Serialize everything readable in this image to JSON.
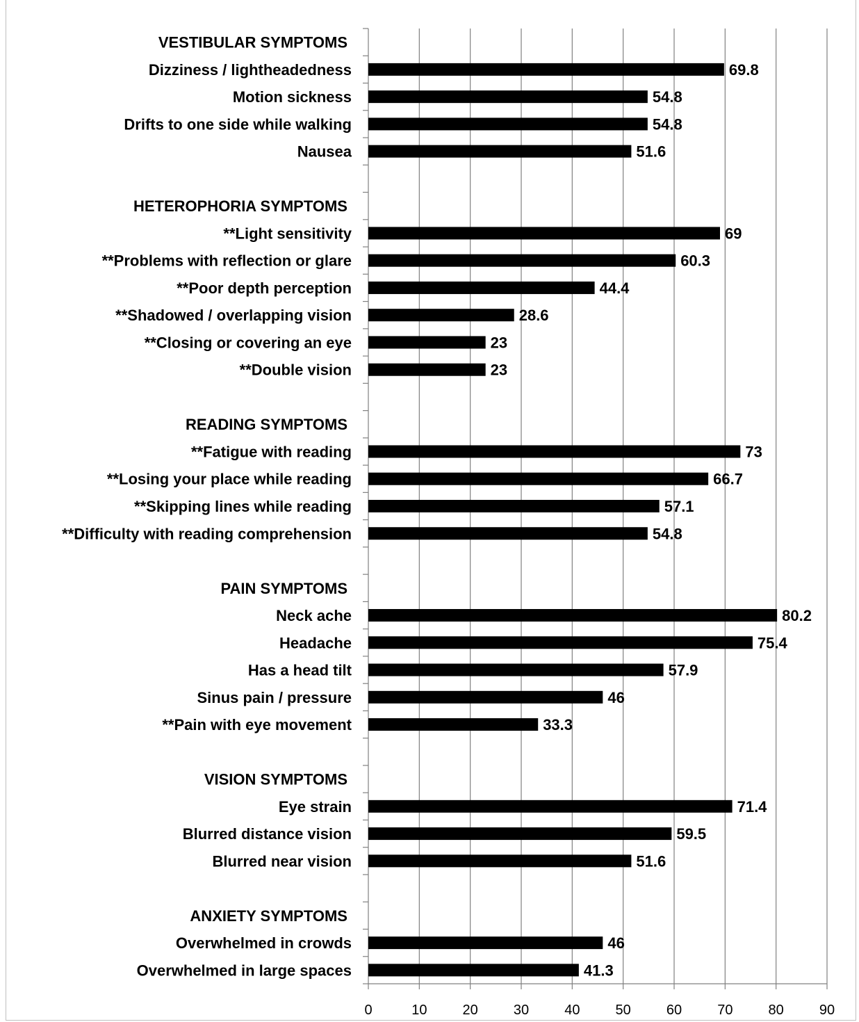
{
  "chart_data": {
    "type": "bar",
    "orientation": "horizontal",
    "title": "",
    "xlabel": "",
    "ylabel": "",
    "xlim": [
      0,
      90
    ],
    "x_ticks": [
      "0",
      "10",
      "20",
      "30",
      "40",
      "50",
      "60",
      "70",
      "80",
      "90"
    ],
    "grid": "vertical",
    "bar_color": "#000000",
    "gridline_color": "#808080",
    "rows": [
      {
        "label": "VESTIBULAR SYMPTOMS",
        "header": true
      },
      {
        "label": "Dizziness / lightheadedness",
        "value": 69.8,
        "value_label": "69.8"
      },
      {
        "label": "Motion sickness",
        "value": 54.8,
        "value_label": "54.8"
      },
      {
        "label": "Drifts to one side while walking",
        "value": 54.8,
        "value_label": "54.8"
      },
      {
        "label": "Nausea",
        "value": 51.6,
        "value_label": "51.6"
      },
      {
        "label": "",
        "spacer": true
      },
      {
        "label": "HETEROPHORIA SYMPTOMS",
        "header": true
      },
      {
        "label": "**Light sensitivity",
        "value": 69,
        "value_label": "69"
      },
      {
        "label": "**Problems with reflection or glare",
        "value": 60.3,
        "value_label": "60.3"
      },
      {
        "label": "**Poor depth perception",
        "value": 44.4,
        "value_label": "44.4"
      },
      {
        "label": "**Shadowed / overlapping vision",
        "value": 28.6,
        "value_label": "28.6"
      },
      {
        "label": "**Closing or covering an eye",
        "value": 23,
        "value_label": "23"
      },
      {
        "label": "**Double vision",
        "value": 23,
        "value_label": "23"
      },
      {
        "label": "",
        "spacer": true
      },
      {
        "label": "READING SYMPTOMS",
        "header": true
      },
      {
        "label": "**Fatigue with reading",
        "value": 73,
        "value_label": "73"
      },
      {
        "label": "**Losing your place while reading",
        "value": 66.7,
        "value_label": "66.7"
      },
      {
        "label": "**Skipping lines while reading",
        "value": 57.1,
        "value_label": "57.1"
      },
      {
        "label": "**Difficulty with reading comprehension",
        "value": 54.8,
        "value_label": "54.8"
      },
      {
        "label": "",
        "spacer": true
      },
      {
        "label": "PAIN SYMPTOMS",
        "header": true
      },
      {
        "label": "Neck ache",
        "value": 80.2,
        "value_label": "80.2"
      },
      {
        "label": "Headache",
        "value": 75.4,
        "value_label": "75.4"
      },
      {
        "label": "Has a head tilt",
        "value": 57.9,
        "value_label": "57.9"
      },
      {
        "label": "Sinus pain / pressure",
        "value": 46,
        "value_label": "46"
      },
      {
        "label": "**Pain with eye movement",
        "value": 33.3,
        "value_label": "33.3"
      },
      {
        "label": "",
        "spacer": true
      },
      {
        "label": "VISION SYMPTOMS",
        "header": true
      },
      {
        "label": "Eye strain",
        "value": 71.4,
        "value_label": "71.4"
      },
      {
        "label": "Blurred distance vision",
        "value": 59.5,
        "value_label": "59.5"
      },
      {
        "label": "Blurred near vision",
        "value": 51.6,
        "value_label": "51.6"
      },
      {
        "label": "",
        "spacer": true
      },
      {
        "label": "ANXIETY SYMPTOMS",
        "header": true
      },
      {
        "label": "Overwhelmed in crowds",
        "value": 46,
        "value_label": "46"
      },
      {
        "label": "Overwhelmed in large spaces",
        "value": 41.3,
        "value_label": "41.3"
      }
    ]
  }
}
